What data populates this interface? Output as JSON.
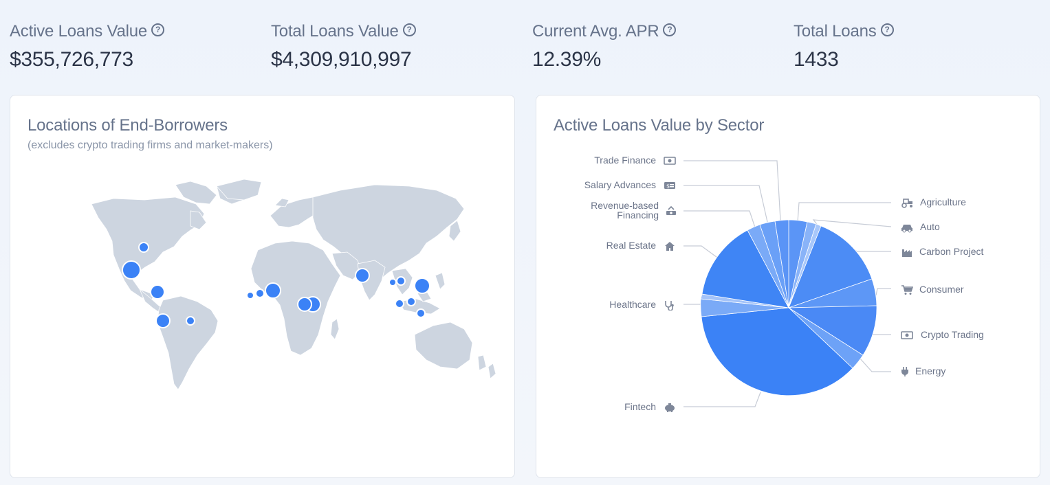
{
  "stats": [
    {
      "label": "Active Loans Value",
      "value": "$355,726,773",
      "help_icon": "question-circle-icon"
    },
    {
      "label": "Total Loans Value",
      "value": "$4,309,910,997",
      "help_icon": "question-circle-icon"
    },
    {
      "label": "Current Avg. APR",
      "value": "12.39%",
      "help_icon": "question-circle-icon"
    },
    {
      "label": "Total Loans",
      "value": "1433",
      "help_icon": "question-circle-icon"
    }
  ],
  "map_card": {
    "title": "Locations of End-Borrowers",
    "subtitle": "(excludes crypto trading firms and market-makers)"
  },
  "sector_card": {
    "title": "Active Loans Value by Sector"
  },
  "sectors": {
    "trade_finance": "Trade Finance",
    "salary_advances": "Salary Advances",
    "revenue_based": "Revenue-based Financing",
    "revenue_based_line1": "Revenue-based",
    "revenue_based_line2": "Financing",
    "real_estate": "Real Estate",
    "healthcare": "Healthcare",
    "fintech": "Fintech",
    "agriculture": "Agriculture",
    "auto": "Auto",
    "carbon_project": "Carbon Project",
    "consumer": "Consumer",
    "crypto_trading": "Crypto Trading",
    "energy": "Energy"
  },
  "colors": {
    "accent": "#3b82f6",
    "land": "#cdd5e0",
    "marker": "#3b82f6"
  }
}
